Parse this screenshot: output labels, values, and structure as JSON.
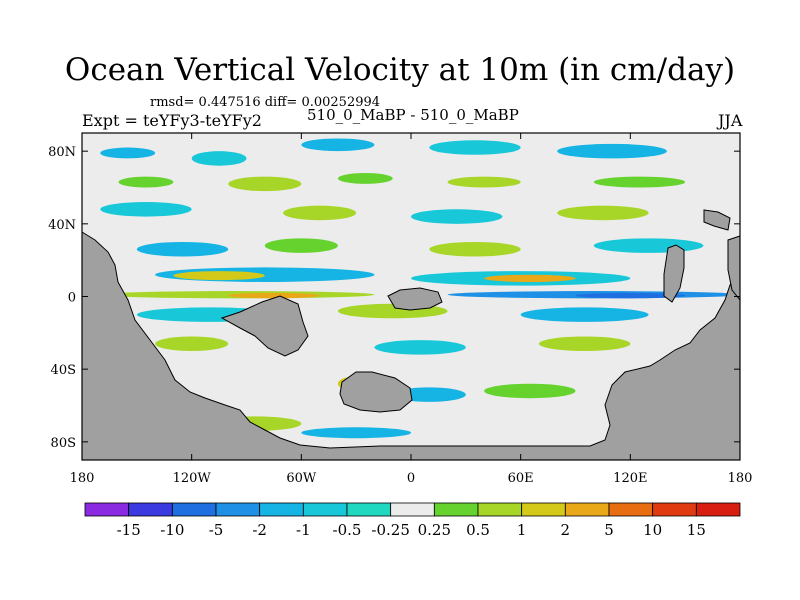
{
  "chart_data": {
    "type": "heatmap",
    "title": "Ocean Vertical Velocity at 10m (in cm/day)",
    "stats": "rmsd= 0.447516 diff= 0.00252994",
    "left_label": "Expt = teYFy3-teYFy2",
    "center_label": "510_0_MaBP - 510_0_MaBP",
    "right_label": "JJA",
    "xlim": [
      -180,
      180
    ],
    "ylim": [
      -90,
      90
    ],
    "x_ticks": [
      {
        "value": -180,
        "label": "180"
      },
      {
        "value": -120,
        "label": "120W"
      },
      {
        "value": -60,
        "label": "60W"
      },
      {
        "value": 0,
        "label": "0"
      },
      {
        "value": 60,
        "label": "60E"
      },
      {
        "value": 120,
        "label": "120E"
      },
      {
        "value": 180,
        "label": "180"
      }
    ],
    "y_ticks": [
      {
        "value": 80,
        "label": "80N"
      },
      {
        "value": 40,
        "label": "40N"
      },
      {
        "value": 0,
        "label": "0"
      },
      {
        "value": -40,
        "label": "40S"
      },
      {
        "value": -80,
        "label": "80S"
      }
    ],
    "levels": [
      "-15",
      "-10",
      "-5",
      "-2",
      "-1",
      "-0.5",
      "-0.25",
      "0.25",
      "0.5",
      "1",
      "2",
      "5",
      "10",
      "15"
    ],
    "colors": [
      "#8a2be2",
      "#3a3ae0",
      "#1f6fe0",
      "#1e90e6",
      "#16b4e4",
      "#18c8d8",
      "#20d8c0",
      "#ececec",
      "#66d22e",
      "#a8d628",
      "#d4c818",
      "#e8a818",
      "#e86c10",
      "#e03a10",
      "#d81e10"
    ],
    "land_color": "#a0a0a0",
    "ocean_background_color": "#ececec",
    "features": [
      {
        "lon0": -170,
        "lon1": -140,
        "lat0": 76,
        "lat1": 82,
        "level": 4
      },
      {
        "lon0": -120,
        "lon1": -90,
        "lat0": 72,
        "lat1": 80,
        "level": 5
      },
      {
        "lon0": -60,
        "lon1": -20,
        "lat0": 80,
        "lat1": 87,
        "level": 4
      },
      {
        "lon0": 10,
        "lon1": 60,
        "lat0": 78,
        "lat1": 86,
        "level": 5
      },
      {
        "lon0": 80,
        "lon1": 140,
        "lat0": 76,
        "lat1": 84,
        "level": 4
      },
      {
        "lon0": -160,
        "lon1": -130,
        "lat0": 60,
        "lat1": 66,
        "level": 8
      },
      {
        "lon0": -100,
        "lon1": -60,
        "lat0": 58,
        "lat1": 66,
        "level": 9
      },
      {
        "lon0": -40,
        "lon1": -10,
        "lat0": 62,
        "lat1": 68,
        "level": 8
      },
      {
        "lon0": 20,
        "lon1": 60,
        "lat0": 60,
        "lat1": 66,
        "level": 9
      },
      {
        "lon0": 100,
        "lon1": 150,
        "lat0": 60,
        "lat1": 66,
        "level": 8
      },
      {
        "lon0": -170,
        "lon1": -120,
        "lat0": 44,
        "lat1": 52,
        "level": 5
      },
      {
        "lon0": -70,
        "lon1": -30,
        "lat0": 42,
        "lat1": 50,
        "level": 9
      },
      {
        "lon0": 0,
        "lon1": 50,
        "lat0": 40,
        "lat1": 48,
        "level": 5
      },
      {
        "lon0": 80,
        "lon1": 130,
        "lat0": 42,
        "lat1": 50,
        "level": 9
      },
      {
        "lon0": -150,
        "lon1": -100,
        "lat0": 22,
        "lat1": 30,
        "level": 4
      },
      {
        "lon0": -80,
        "lon1": -40,
        "lat0": 24,
        "lat1": 32,
        "level": 8
      },
      {
        "lon0": 10,
        "lon1": 60,
        "lat0": 22,
        "lat1": 30,
        "level": 9
      },
      {
        "lon0": 100,
        "lon1": 160,
        "lat0": 24,
        "lat1": 32,
        "level": 5
      },
      {
        "lon0": -140,
        "lon1": -20,
        "lat0": 8,
        "lat1": 16,
        "level": 4
      },
      {
        "lon0": -130,
        "lon1": -80,
        "lat0": 9,
        "lat1": 14,
        "level": 10
      },
      {
        "lon0": 0,
        "lon1": 120,
        "lat0": 6,
        "lat1": 14,
        "level": 5
      },
      {
        "lon0": 40,
        "lon1": 90,
        "lat0": 8,
        "lat1": 12,
        "level": 11
      },
      {
        "lon0": -170,
        "lon1": -20,
        "lat0": -1,
        "lat1": 3,
        "level": 9
      },
      {
        "lon0": -100,
        "lon1": -50,
        "lat0": -1,
        "lat1": 2,
        "level": 11
      },
      {
        "lon0": 20,
        "lon1": 180,
        "lat0": -1,
        "lat1": 3,
        "level": 3
      },
      {
        "lon0": 90,
        "lon1": 150,
        "lat0": -1,
        "lat1": 2,
        "level": 2
      },
      {
        "lon0": -150,
        "lon1": -70,
        "lat0": -14,
        "lat1": -6,
        "level": 5
      },
      {
        "lon0": -40,
        "lon1": 20,
        "lat0": -12,
        "lat1": -4,
        "level": 9
      },
      {
        "lon0": 60,
        "lon1": 130,
        "lat0": -14,
        "lat1": -6,
        "level": 4
      },
      {
        "lon0": -140,
        "lon1": -100,
        "lat0": -30,
        "lat1": -22,
        "level": 9
      },
      {
        "lon0": -20,
        "lon1": 30,
        "lat0": -32,
        "lat1": -24,
        "level": 5
      },
      {
        "lon0": 70,
        "lon1": 120,
        "lat0": -30,
        "lat1": -22,
        "level": 9
      },
      {
        "lon0": -40,
        "lon1": -20,
        "lat0": -52,
        "lat1": -44,
        "level": 10
      },
      {
        "lon0": -10,
        "lon1": 30,
        "lat0": -58,
        "lat1": -50,
        "level": 4
      },
      {
        "lon0": 40,
        "lon1": 90,
        "lat0": -56,
        "lat1": -48,
        "level": 8
      },
      {
        "lon0": -110,
        "lon1": -60,
        "lat0": -74,
        "lat1": -66,
        "level": 9
      },
      {
        "lon0": -60,
        "lon1": 0,
        "lat0": -78,
        "lat1": -72,
        "level": 4
      }
    ]
  }
}
